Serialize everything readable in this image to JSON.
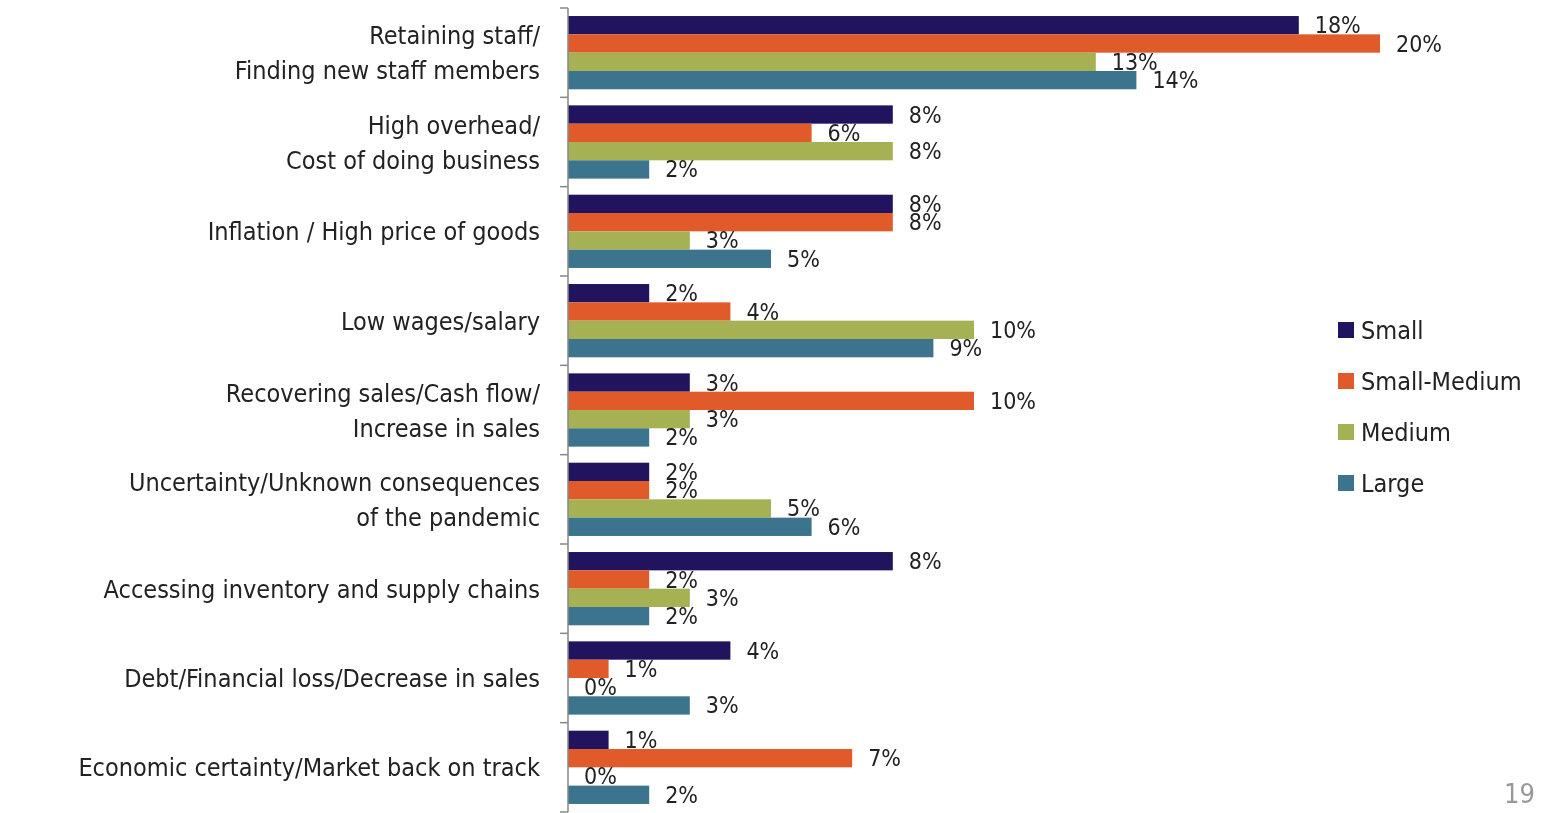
{
  "chart_data": {
    "type": "bar",
    "orientation": "horizontal",
    "legend": "right",
    "annotations": [
      "19"
    ],
    "categories": [
      "Retaining staff/\nFinding new staff members",
      "High overhead/\nCost of doing business",
      "Inflation / High price of goods",
      "Low wages/salary",
      "Recovering sales/Cash flow/\nIncrease in sales",
      "Uncertainty/Unknown consequences\nof the pandemic",
      "Accessing inventory and supply chains",
      "Debt/Financial loss/Decrease in sales",
      "Economic certainty/Market back on track"
    ],
    "series": [
      {
        "name": "Small",
        "color": "#21135e",
        "values": [
          18,
          8,
          8,
          2,
          3,
          2,
          8,
          4,
          1
        ],
        "value_labels": [
          "18%",
          "8%",
          "8%",
          "2%",
          "3%",
          "2%",
          "8%",
          "4%",
          "1%"
        ]
      },
      {
        "name": "Small-Medium",
        "color": "#e05a2a",
        "values": [
          20,
          6,
          8,
          4,
          10,
          2,
          2,
          1,
          7
        ],
        "value_labels": [
          "20%",
          "6%",
          "8%",
          "4%",
          "10%",
          "2%",
          "2%",
          "1%",
          "7%"
        ]
      },
      {
        "name": "Medium",
        "color": "#a5b153",
        "values": [
          13,
          8,
          3,
          10,
          3,
          5,
          3,
          0,
          0
        ],
        "value_labels": [
          "13%",
          "8%",
          "3%",
          "10%",
          "3%",
          "5%",
          "3%",
          "0%",
          "0%"
        ]
      },
      {
        "name": "Large",
        "color": "#3b748c",
        "values": [
          14,
          2,
          5,
          9,
          2,
          6,
          2,
          3,
          2
        ],
        "value_labels": [
          "14%",
          "2%",
          "5%",
          "9%",
          "2%",
          "6%",
          "2%",
          "3%",
          "2%"
        ]
      }
    ]
  }
}
